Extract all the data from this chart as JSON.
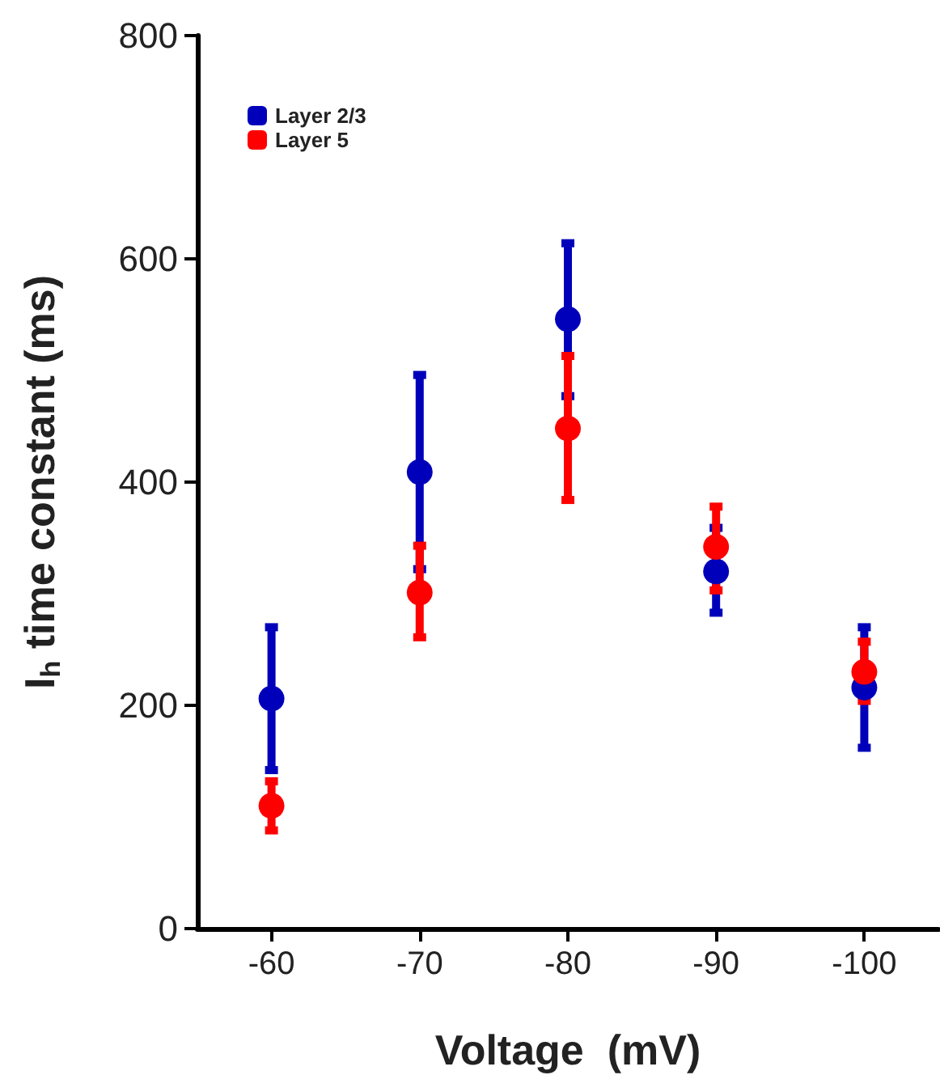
{
  "chart_data": {
    "type": "scatter",
    "xlabel": "Voltage  (mV)",
    "ylabel": "I$_{h}$ time constant (ms)",
    "categories": [
      "-60",
      "-70",
      "-80",
      "-90",
      "-100"
    ],
    "ylim": [
      0,
      800
    ],
    "yticks": [
      0,
      200,
      400,
      600,
      800
    ],
    "grid": false,
    "legend": "top left",
    "marker": "circle",
    "series": [
      {
        "name": "Layer 2/3",
        "color": "#0000bb",
        "values": [
          206,
          409,
          546,
          320,
          216
        ],
        "errors": [
          [
            142,
            270
          ],
          [
            322,
            496
          ],
          [
            477,
            614
          ],
          [
            283,
            359
          ],
          [
            162,
            270
          ]
        ]
      },
      {
        "name": "Layer 5",
        "color": "#ff0000",
        "values": [
          110,
          301,
          448,
          342,
          230
        ],
        "errors": [
          [
            88,
            132
          ],
          [
            261,
            343
          ],
          [
            384,
            513
          ],
          [
            303,
            378
          ],
          [
            204,
            257
          ]
        ]
      }
    ]
  }
}
